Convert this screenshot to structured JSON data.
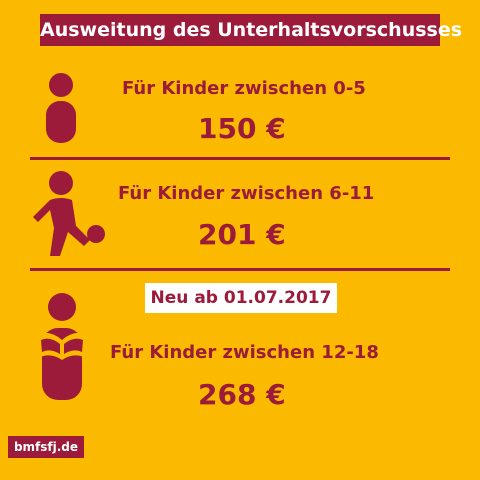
{
  "title": "Ausweitung des Unterhaltsvorschusses",
  "rows": [
    {
      "label": "Für Kinder zwischen 0-5",
      "amount": "150 €",
      "icon": "child-standing-icon"
    },
    {
      "label": "Für Kinder zwischen 6-11",
      "amount": "201 €",
      "icon": "child-kicking-ball-icon"
    },
    {
      "label": "Für Kinder zwischen 12-18",
      "amount": "268 €",
      "icon": "teen-reading-book-icon"
    }
  ],
  "badge": "Neu ab 01.07.2017",
  "logo": "bmfsfj.de",
  "colors": {
    "background": "#fbba00",
    "accent": "#9c1b3a",
    "text_light": "#ffffff"
  }
}
